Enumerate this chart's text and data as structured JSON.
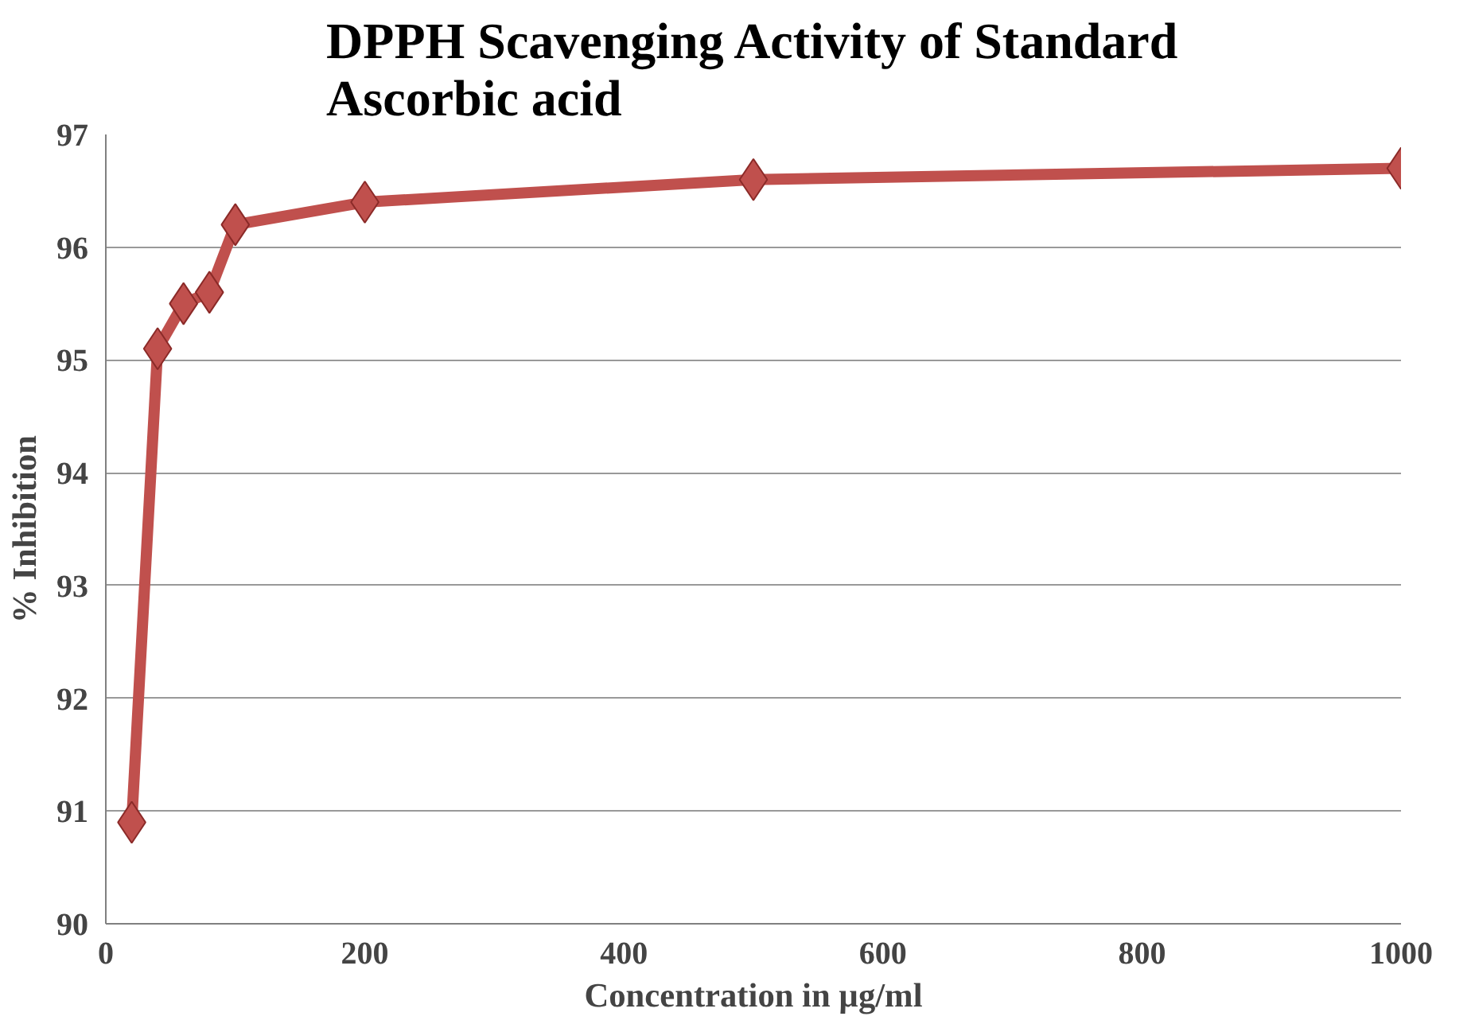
{
  "chart_data": {
    "type": "line",
    "title": "DPPH Scavenging Activity of Standard Ascorbic acid",
    "xlabel": "Concentration in µg/ml",
    "ylabel": "% Inhibition",
    "x": [
      20,
      40,
      60,
      80,
      100,
      200,
      500,
      1000
    ],
    "series": [
      {
        "color": "#c0504d",
        "values": [
          90.9,
          95.1,
          95.5,
          95.6,
          96.2,
          96.4,
          96.6,
          96.7
        ]
      }
    ],
    "xlim": [
      0,
      1000
    ],
    "xticks": [
      0,
      200,
      400,
      600,
      800,
      1000
    ],
    "ylim": [
      90,
      97
    ],
    "yticks": [
      90,
      91,
      92,
      93,
      94,
      95,
      96,
      97
    ],
    "grid": "y",
    "marker": "diamond",
    "line_style": "solid"
  }
}
